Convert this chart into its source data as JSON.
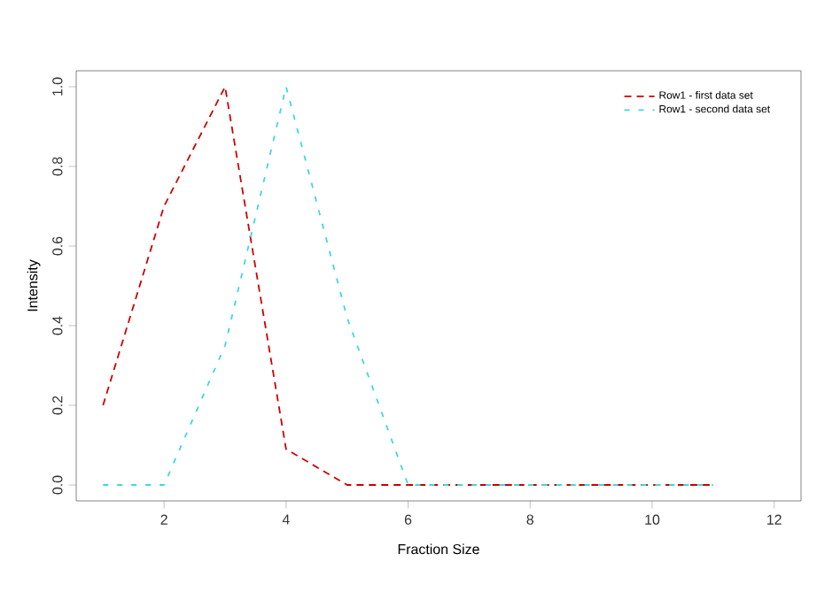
{
  "chart_data": {
    "type": "line",
    "xlabel": "Fraction Size",
    "ylabel": "Intensity",
    "x": [
      1,
      2,
      3,
      4,
      5,
      6,
      7,
      8,
      9,
      10,
      11
    ],
    "series": [
      {
        "name": "Row1 - first data set",
        "color": "#cd0000",
        "line_style": "dashed",
        "values": [
          0.2,
          0.7,
          1.0,
          0.09,
          0,
          0,
          0,
          0,
          0,
          0,
          0
        ]
      },
      {
        "name": "Row1 - second data set",
        "color": "#3fd8d8",
        "line_style": "loosely dashed",
        "values": [
          0,
          0,
          0.35,
          1.0,
          0.42,
          0,
          0,
          0,
          0,
          0,
          0
        ]
      }
    ],
    "xlim": [
      0.56,
      12.44
    ],
    "ylim": [
      -0.04,
      1.04
    ],
    "xticks": [
      2,
      4,
      6,
      8,
      10,
      12
    ],
    "yticks": [
      {
        "value": 0,
        "label": "0.0"
      },
      {
        "value": 0.2,
        "label": "0.2"
      },
      {
        "value": 0.4,
        "label": "0.4"
      },
      {
        "value": 0.6,
        "label": "0.6"
      },
      {
        "value": 0.8,
        "label": "0.8"
      },
      {
        "value": 1.0,
        "label": "1.0"
      }
    ],
    "grid": false,
    "legend": "top right",
    "marker": "none"
  }
}
